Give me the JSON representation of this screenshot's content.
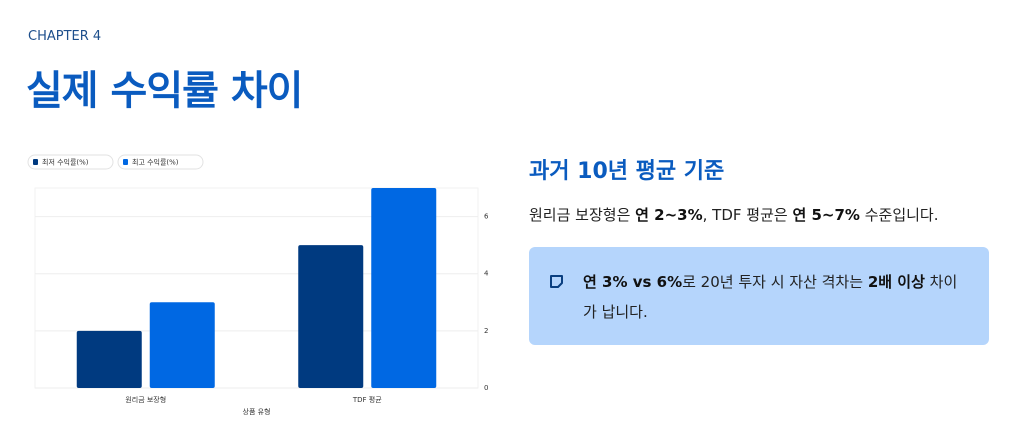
{
  "header": {
    "chapter": "CHAPTER 4",
    "title": "실제 수익률 차이"
  },
  "chart_data": {
    "type": "bar",
    "categories": [
      "원리금 보장형",
      "TDF 평균"
    ],
    "series": [
      {
        "name": "최저 수익률(%)",
        "color": "#003a80",
        "values": [
          2,
          5
        ]
      },
      {
        "name": "최고 수익률(%)",
        "color": "#0068e3",
        "values": [
          3,
          7
        ]
      }
    ],
    "xlabel": "상품 유형",
    "ylim": [
      0,
      7
    ],
    "yticks": [
      0,
      2,
      4,
      6
    ],
    "grid": true,
    "legend": "top-left"
  },
  "panel": {
    "heading": "과거 10년 평균 기준",
    "paragraph": [
      {
        "text": "원리금 보장형은 "
      },
      {
        "text": "연 2~3%",
        "bold": true
      },
      {
        "text": ", TDF 평균은 "
      },
      {
        "text": "연 5~7%",
        "bold": true
      },
      {
        "text": " 수준입니다."
      }
    ],
    "callout": [
      {
        "text": "연 3% vs 6%",
        "bold": true
      },
      {
        "text": "로 20년 투자 시 자산 격차는 "
      },
      {
        "text": "2배 이상",
        "bold": true
      },
      {
        "text": " 차이가 납니다."
      }
    ]
  }
}
